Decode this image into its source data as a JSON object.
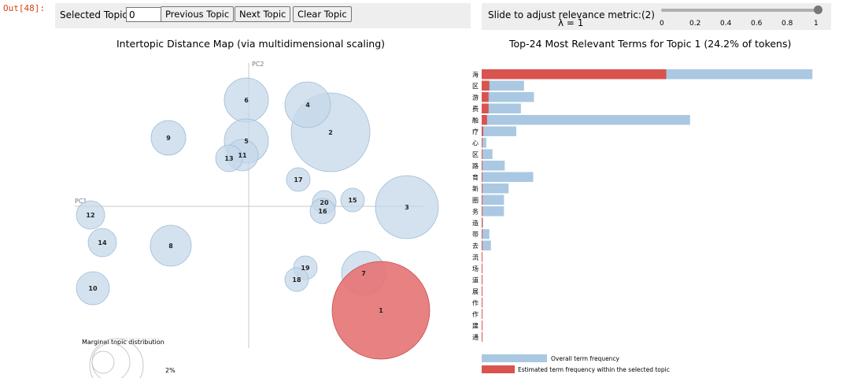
{
  "cell": {
    "out_label": "Out[48]:"
  },
  "controls": {
    "selected_topic_label": "Selected Topic:",
    "selected_topic_value": "0",
    "previous_label": "Previous Topic",
    "next_label": "Next Topic",
    "clear_label": "Clear Topic"
  },
  "slider": {
    "label": "Slide to adjust relevance metric:(2)",
    "lambda_text": "λ = 1",
    "ticks": [
      "0",
      "0.2",
      "0.4",
      "0.6",
      "0.8",
      "1"
    ],
    "value": 1
  },
  "left": {
    "title": "Intertopic Distance Map (via multidimensional scaling)",
    "pc1": "PC1",
    "pc2": "PC2",
    "marginal_title": "Marginal topic distribution",
    "marginal_value": "2%",
    "colors": {
      "bubble": "#c6d8ea",
      "bubble_stroke": "#9fbbd6",
      "selected": "#e57373",
      "selected_stroke": "#c85050"
    },
    "selected_topic": "1",
    "topics": [
      "1",
      "2",
      "3",
      "4",
      "5",
      "6",
      "7",
      "8",
      "9",
      "10",
      "11",
      "12",
      "13",
      "14",
      "15",
      "16",
      "17",
      "18",
      "19",
      "20"
    ]
  },
  "right": {
    "title": "Top-24 Most Relevant Terms for Topic 1 (24.2% of tokens)",
    "legend_overall": "Overall term frequency",
    "legend_estimated": "Estimated term frequency within the selected topic",
    "colors": {
      "overall": "#aac8e2",
      "estimated": "#d9534f"
    }
  },
  "chart_data": {
    "type": "bar",
    "title": "Top-24 Most Relevant Terms for Topic 1 (24.2% of tokens)",
    "categories": [
      "前海",
      "粤港澳大湾区",
      "旅游",
      "消费",
      "金融",
      "医疗",
      "国际科技创新中心",
      "落马洲河套地区",
      "一带一路",
      "教育",
      "科技创新",
      "深港创新圈",
      "专业服务",
      "高端制造",
      "口岸经济带",
      "走出去",
      "跨境物流",
      "内销市场",
      "港深机场轨道",
      "人才发展",
      "文化合作",
      "医疗合作",
      "跨界基建",
      "一卡两地通"
    ],
    "series": [
      {
        "name": "Overall term frequency",
        "values": [
          430,
          55,
          68,
          51,
          271,
          45,
          6,
          14,
          30,
          67,
          35,
          29,
          29,
          2,
          10,
          12,
          1,
          1,
          1,
          1,
          1,
          1,
          1,
          1
        ]
      },
      {
        "name": "Estimated term frequency within the selected topic",
        "values": [
          240,
          10,
          9,
          9,
          7,
          2,
          1,
          1,
          1,
          1,
          1,
          1,
          1,
          1,
          1,
          1,
          1,
          1,
          1,
          1,
          1,
          1,
          1,
          1
        ]
      }
    ],
    "xlim": [
      0,
      440
    ]
  }
}
